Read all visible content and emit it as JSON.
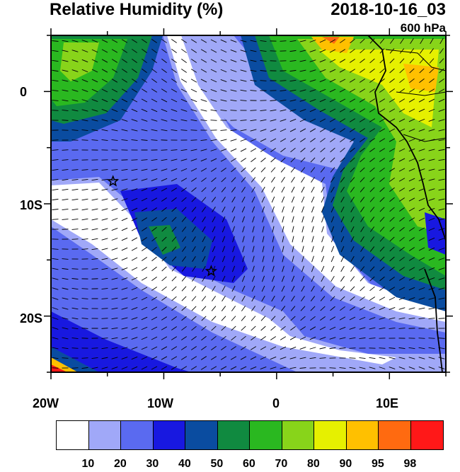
{
  "header": {
    "title": "Relative Humidity (%)",
    "datetime": "2018-10-16_03",
    "level": "600 hPa"
  },
  "axes": {
    "lat_labels": [
      "0",
      "10S",
      "20S"
    ],
    "lon_labels": [
      "20W",
      "10W",
      "0",
      "10E"
    ]
  },
  "colorbar": {
    "colors": [
      "#ffffff",
      "#a0a8f8",
      "#5a6af0",
      "#1818e0",
      "#0a4ca0",
      "#108a40",
      "#2ab820",
      "#88d41a",
      "#e6f000",
      "#ffc000",
      "#ff6a10",
      "#ff1818"
    ],
    "labels": [
      "10",
      "20",
      "30",
      "40",
      "50",
      "60",
      "70",
      "80",
      "90",
      "95",
      "98"
    ]
  },
  "markers": [
    {
      "name": "star-marker-1",
      "lon": -14.5,
      "lat": -8
    },
    {
      "name": "star-marker-2",
      "lon": -5.8,
      "lat": -16
    }
  ]
}
